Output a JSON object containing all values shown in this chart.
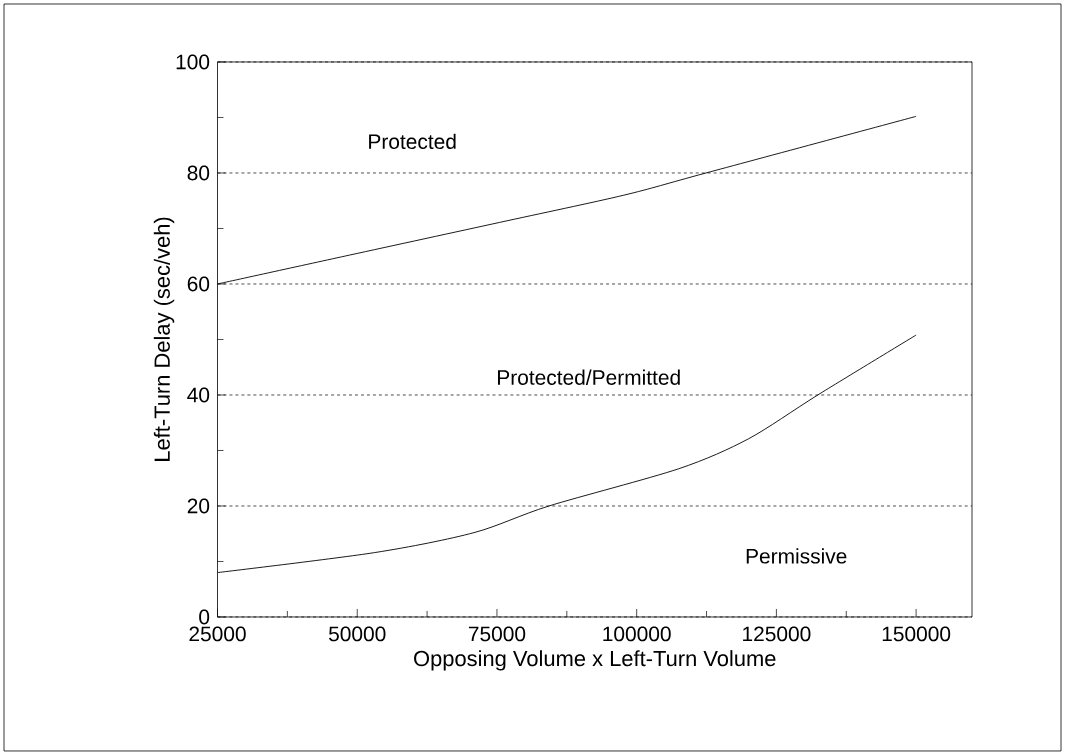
{
  "chart_data": {
    "type": "line",
    "xlabel": "Opposing Volume x Left-Turn Volume",
    "ylabel": "Left-Turn Delay (sec/veh)",
    "x": [
      25000,
      48600,
      75500,
      97700,
      112400,
      150000
    ],
    "series": [
      {
        "color": "#000000",
        "values": [
          60,
          65.2,
          71.1,
          76.0,
          80,
          90.2
        ]
      },
      {
        "color": "#000000",
        "x": [
          25000,
          53100,
          70900,
          84300,
          107500,
          120000,
          132400,
          150000
        ],
        "values": [
          8,
          11.6,
          15.2,
          20,
          26.7,
          32.1,
          40,
          50.8
        ]
      }
    ],
    "xlim": [
      25000,
      160000
    ],
    "xticks": [
      25000,
      50000,
      75000,
      100000,
      125000,
      150000
    ],
    "ylim": [
      0,
      100
    ],
    "yticks": [
      0,
      20,
      40,
      60,
      80,
      100
    ],
    "grid": "y",
    "marker": "none",
    "line_style": "solid",
    "annotations": [
      "Protected",
      "Protected/Permitted",
      "Permissive"
    ]
  }
}
